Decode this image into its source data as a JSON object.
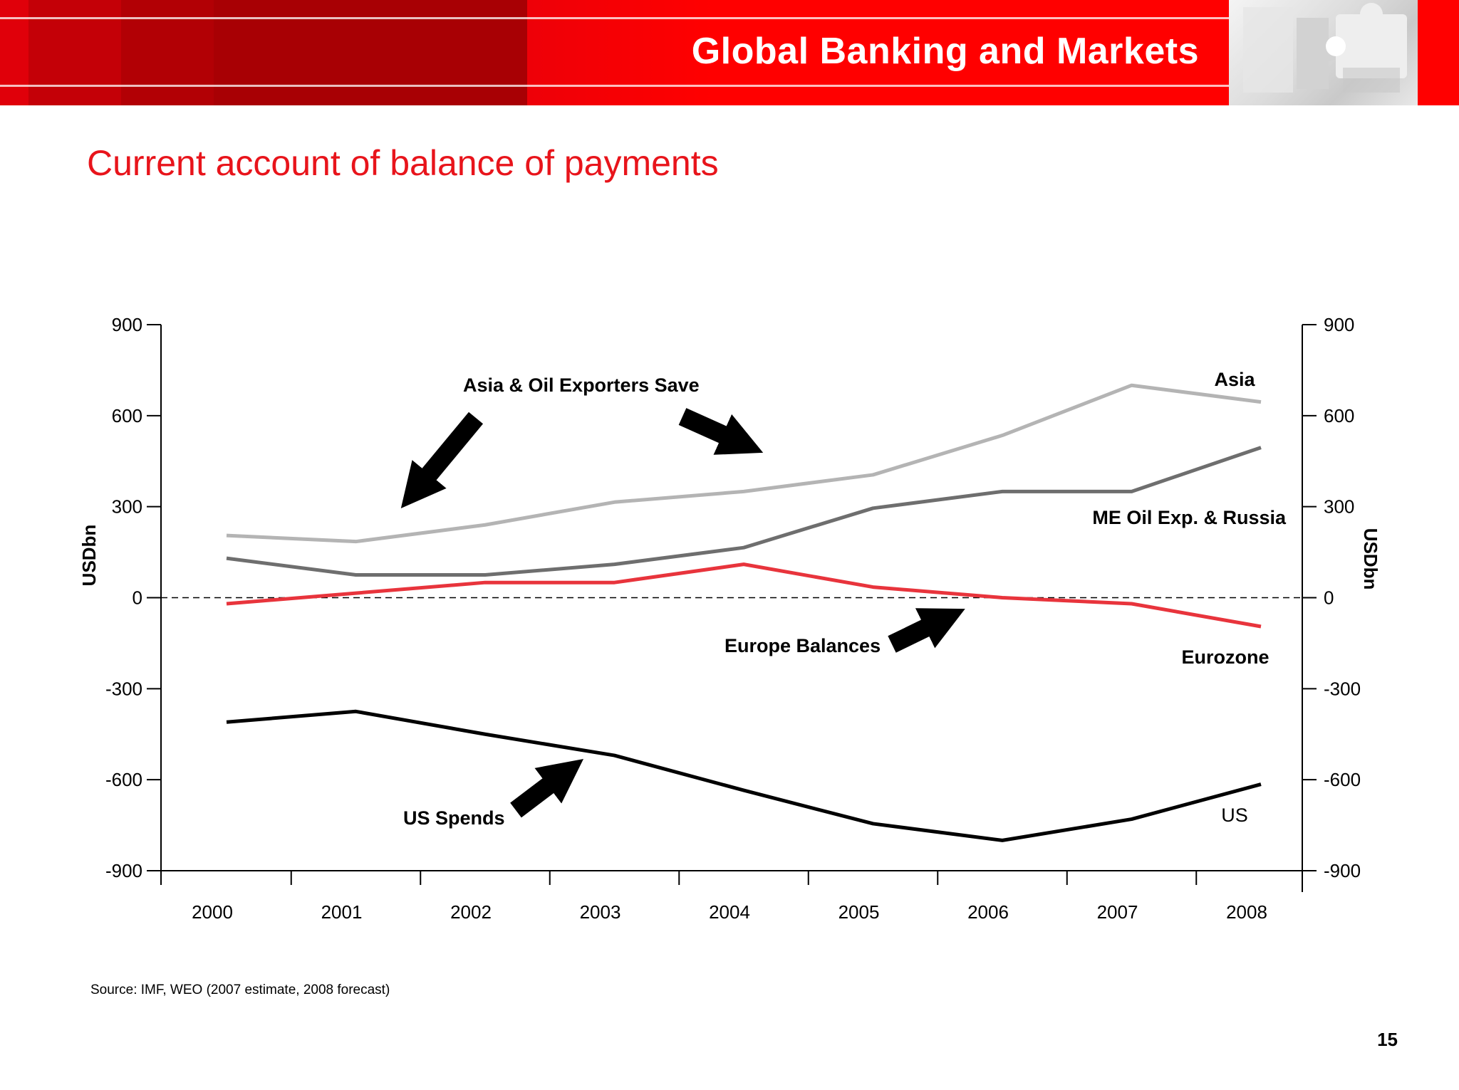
{
  "header": {
    "title": "Global Banking and Markets"
  },
  "slide": {
    "title": "Current account of balance of payments",
    "source": "Source: IMF, WEO (2007 estimate, 2008 forecast)",
    "page_number": "15"
  },
  "annotations": {
    "asia_oil_save": "Asia & Oil Exporters Save",
    "europe_balances": "Europe Balances",
    "us_spends": "US Spends"
  },
  "colors": {
    "header_red": "#ff0000",
    "title_red": "#e8141b",
    "asia": "#b4b4b4",
    "me_oil": "#6e6e6e",
    "eurozone": "#e8343c",
    "us": "#000000"
  },
  "chart_data": {
    "type": "line",
    "x": [
      "2000",
      "2001",
      "2002",
      "2003",
      "2004",
      "2005",
      "2006",
      "2007",
      "2008"
    ],
    "ylabel": "USDbn",
    "ylabel_right": "USDbn",
    "ylim": [
      -900,
      900
    ],
    "yticks": [
      900,
      600,
      300,
      0,
      -300,
      -600,
      -900
    ],
    "zero_line": "dashed",
    "grid": false,
    "series": [
      {
        "name": "Asia",
        "color": "#b4b4b4",
        "values": [
          205,
          185,
          240,
          315,
          350,
          405,
          535,
          700,
          645
        ]
      },
      {
        "name": "ME Oil Exp. & Russia",
        "color": "#6e6e6e",
        "values": [
          130,
          75,
          75,
          110,
          165,
          295,
          350,
          350,
          495
        ]
      },
      {
        "name": "Eurozone",
        "color": "#e8343c",
        "values": [
          -20,
          15,
          50,
          50,
          110,
          35,
          0,
          -20,
          -95
        ]
      },
      {
        "name": "US",
        "color": "#000000",
        "values": [
          -410,
          -375,
          -450,
          -520,
          -635,
          -745,
          -800,
          -730,
          -615
        ]
      }
    ]
  }
}
